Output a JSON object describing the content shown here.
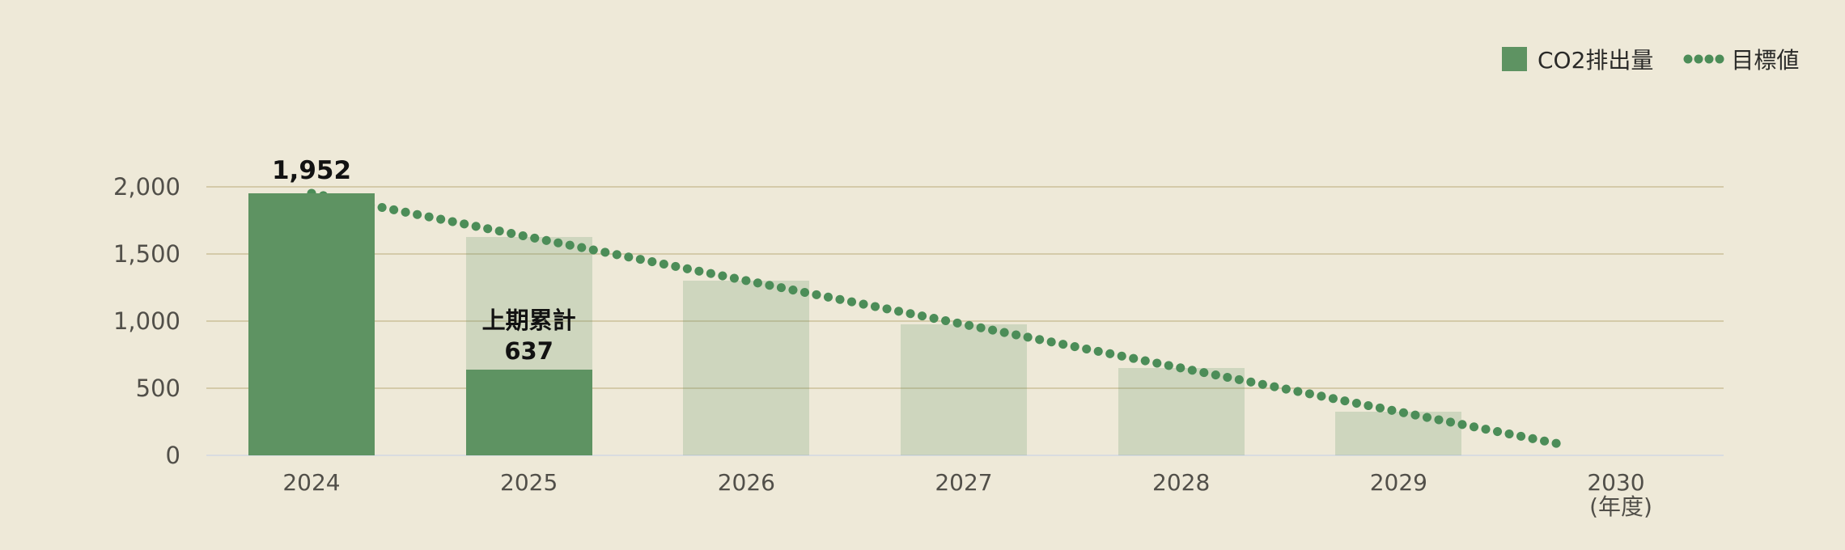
{
  "legend": {
    "co2_label": "CO2排出量",
    "target_label": "目標値"
  },
  "chart_data": {
    "type": "bar",
    "title": "",
    "xlabel": "(年度)",
    "ylabel": "",
    "categories": [
      "2024",
      "2025",
      "2026",
      "2027",
      "2028",
      "2029",
      "2030"
    ],
    "series": [
      {
        "name": "CO2排出量",
        "style": "solid-dark-green-bar",
        "values": [
          1952,
          637,
          null,
          null,
          null,
          null,
          null
        ]
      },
      {
        "name": "目標値(薄緑バー)",
        "style": "light-green-bar",
        "values": [
          null,
          1627,
          1301,
          976,
          651,
          325,
          null
        ]
      },
      {
        "name": "目標値",
        "style": "dotted-line",
        "points": [
          {
            "category": "2024",
            "value": 1952
          },
          {
            "category": "2030",
            "value": 0
          }
        ]
      }
    ],
    "value_labels": [
      {
        "category": "2024",
        "text": "1,952"
      }
    ],
    "annotations": [
      {
        "category": "2025",
        "line1": "上期累計",
        "line2": "637"
      }
    ],
    "y_ticks": [
      {
        "value": 0,
        "label": "0"
      },
      {
        "value": 500,
        "label": "500"
      },
      {
        "value": 1000,
        "label": "1,000"
      },
      {
        "value": 1500,
        "label": "1,500"
      },
      {
        "value": 2000,
        "label": "2,000"
      }
    ],
    "ylim": [
      0,
      2200
    ],
    "grid": true,
    "legend_position": "top-right",
    "x_unit_label": "(年度)"
  },
  "colors": {
    "background": "#eee9d8",
    "bar_actual": "#5e9362",
    "bar_target_effective": "#d6d9c0",
    "bar_target_rgba": "rgba(94,147,98,0.22)",
    "target_line": "#4c8d58",
    "gridline": "#d4caa9",
    "baseline": "#d9dce0",
    "axis_text": "#514f49",
    "label_text": "#121212",
    "legend_text": "#2a2a28"
  }
}
